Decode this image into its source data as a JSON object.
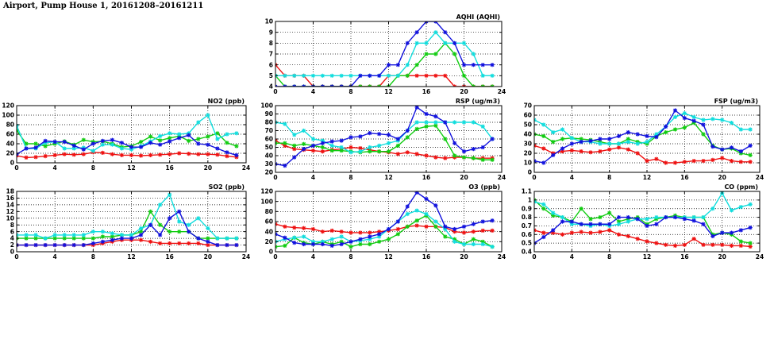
{
  "page": {
    "title": "Airport, Pump House 1, 20161208–20161211"
  },
  "colors": {
    "series1": "#ee1111",
    "series2": "#11cc11",
    "series3": "#1111dd",
    "series4": "#11dddd"
  },
  "chart_data": [
    {
      "id": "aqhi",
      "type": "line",
      "title": "AQHI (AQHI)",
      "xlim": [
        0,
        24
      ],
      "ylim": [
        4,
        10
      ],
      "xticks": [
        0,
        4,
        8,
        12,
        16,
        20,
        24
      ],
      "yticks": [
        4,
        5,
        6,
        7,
        8,
        9,
        10
      ],
      "grid": true,
      "series": [
        {
          "color": "#ee1111",
          "values": [
            6,
            5,
            5,
            5,
            4,
            4,
            4,
            4,
            4,
            4,
            4,
            4,
            5,
            5,
            5,
            5,
            5,
            5,
            5,
            4,
            4,
            4,
            4,
            4
          ]
        },
        {
          "color": "#11cc11",
          "values": [
            5,
            4,
            4,
            4,
            4,
            4,
            4,
            4,
            4,
            4,
            4,
            4,
            4,
            5,
            5,
            6,
            7,
            7,
            8,
            7,
            5,
            4,
            4,
            4
          ]
        },
        {
          "color": "#11dddd",
          "values": [
            5,
            5,
            5,
            5,
            5,
            5,
            5,
            5,
            5,
            5,
            5,
            5,
            5,
            5,
            6,
            8,
            8,
            9,
            8,
            8,
            8,
            7,
            5,
            5
          ]
        },
        {
          "color": "#1111dd",
          "values": [
            4,
            4,
            4,
            4,
            4,
            4,
            4,
            4,
            4,
            5,
            5,
            5,
            6,
            6,
            8,
            9,
            10,
            10,
            9,
            8,
            6,
            6,
            6,
            6
          ]
        }
      ]
    },
    {
      "id": "no2",
      "type": "line",
      "title": "NO2 (ppb)",
      "xlim": [
        0,
        24
      ],
      "ylim": [
        0,
        120
      ],
      "xticks": [
        0,
        4,
        8,
        12,
        16,
        20,
        24
      ],
      "yticks": [
        0,
        20,
        40,
        60,
        80,
        100,
        120
      ],
      "grid": true,
      "series": [
        {
          "color": "#ee1111",
          "values": [
            15,
            11,
            12,
            14,
            16,
            18,
            17,
            18,
            22,
            21,
            18,
            16,
            16,
            15,
            16,
            17,
            18,
            20,
            19,
            18,
            18,
            17,
            14,
            12
          ]
        },
        {
          "color": "#11cc11",
          "values": [
            68,
            40,
            40,
            35,
            40,
            45,
            38,
            48,
            44,
            45,
            40,
            33,
            35,
            44,
            55,
            47,
            52,
            56,
            46,
            50,
            55,
            62,
            42,
            35
          ]
        },
        {
          "color": "#11dddd",
          "values": [
            78,
            30,
            30,
            42,
            44,
            30,
            30,
            32,
            25,
            38,
            38,
            30,
            28,
            35,
            45,
            56,
            62,
            60,
            62,
            85,
            100,
            50,
            60,
            62
          ]
        },
        {
          "color": "#1111dd",
          "values": [
            18,
            30,
            32,
            46,
            44,
            44,
            36,
            28,
            40,
            46,
            48,
            42,
            33,
            33,
            42,
            38,
            45,
            52,
            58,
            40,
            38,
            30,
            22,
            16
          ]
        }
      ]
    },
    {
      "id": "rsp",
      "type": "line",
      "title": "RSP (ug/m3)",
      "xlim": [
        0,
        24
      ],
      "ylim": [
        20,
        100
      ],
      "xticks": [
        0,
        4,
        8,
        12,
        16,
        20,
        24
      ],
      "yticks": [
        20,
        30,
        40,
        50,
        60,
        70,
        80,
        90,
        100
      ],
      "grid": true,
      "series": [
        {
          "color": "#ee1111",
          "values": [
            58,
            52,
            48,
            47,
            46,
            45,
            47,
            48,
            50,
            49,
            47,
            45,
            44,
            42,
            44,
            42,
            40,
            38,
            37,
            38,
            38,
            37,
            37,
            37
          ]
        },
        {
          "color": "#11cc11",
          "values": [
            55,
            55,
            52,
            54,
            52,
            50,
            46,
            46,
            45,
            44,
            45,
            45,
            45,
            52,
            62,
            72,
            75,
            76,
            60,
            40,
            38,
            37,
            35,
            35
          ]
        },
        {
          "color": "#11dddd",
          "values": [
            80,
            78,
            65,
            70,
            60,
            58,
            52,
            50,
            44,
            45,
            50,
            52,
            55,
            58,
            70,
            80,
            80,
            80,
            80,
            80,
            80,
            80,
            75,
            60
          ]
        },
        {
          "color": "#1111dd",
          "values": [
            30,
            28,
            38,
            48,
            52,
            55,
            57,
            58,
            62,
            63,
            67,
            66,
            65,
            60,
            70,
            98,
            90,
            87,
            80,
            55,
            45,
            48,
            50,
            60
          ]
        }
      ]
    },
    {
      "id": "fsp",
      "type": "line",
      "title": "FSP (ug/m3)",
      "xlim": [
        0,
        24
      ],
      "ylim": [
        0,
        70
      ],
      "xticks": [
        0,
        4,
        8,
        12,
        16,
        20,
        24
      ],
      "yticks": [
        0,
        10,
        20,
        30,
        40,
        50,
        60,
        70
      ],
      "grid": true,
      "series": [
        {
          "color": "#ee1111",
          "values": [
            28,
            25,
            20,
            22,
            23,
            22,
            21,
            22,
            24,
            26,
            24,
            20,
            12,
            14,
            10,
            10,
            11,
            12,
            12,
            13,
            15,
            12,
            11,
            11
          ]
        },
        {
          "color": "#11cc11",
          "values": [
            40,
            38,
            32,
            35,
            36,
            35,
            34,
            32,
            30,
            30,
            35,
            32,
            30,
            38,
            42,
            45,
            47,
            52,
            40,
            28,
            24,
            25,
            20,
            18
          ]
        },
        {
          "color": "#11dddd",
          "values": [
            55,
            50,
            42,
            45,
            36,
            32,
            32,
            30,
            30,
            30,
            32,
            30,
            32,
            40,
            48,
            58,
            62,
            58,
            55,
            56,
            55,
            52,
            45,
            45
          ]
        },
        {
          "color": "#1111dd",
          "values": [
            12,
            10,
            18,
            25,
            30,
            32,
            33,
            35,
            35,
            38,
            42,
            40,
            38,
            37,
            48,
            65,
            57,
            54,
            50,
            27,
            24,
            26,
            22,
            28
          ]
        }
      ]
    },
    {
      "id": "so2",
      "type": "line",
      "title": "SO2 (ppb)",
      "xlim": [
        0,
        24
      ],
      "ylim": [
        0,
        18
      ],
      "xticks": [
        0,
        4,
        8,
        12,
        16,
        20,
        24
      ],
      "yticks": [
        0,
        2,
        4,
        6,
        8,
        10,
        12,
        14,
        16,
        18
      ],
      "grid": true,
      "series": [
        {
          "color": "#ee1111",
          "values": [
            2,
            2,
            2,
            2,
            2,
            2,
            2,
            2,
            2,
            2.5,
            3,
            3.5,
            3.5,
            3.5,
            3,
            2.5,
            2.5,
            2.5,
            2.5,
            2.5,
            2,
            2,
            2,
            2
          ]
        },
        {
          "color": "#11cc11",
          "values": [
            4,
            4,
            4,
            4,
            4,
            4,
            4,
            4,
            4,
            4.5,
            4.5,
            5,
            5,
            6,
            12,
            8,
            6,
            6,
            6,
            4,
            4,
            4,
            4,
            4
          ]
        },
        {
          "color": "#11dddd",
          "values": [
            5,
            5,
            5,
            4,
            5,
            5,
            5,
            5,
            6,
            6,
            5.5,
            5,
            5,
            7,
            8,
            14,
            17,
            9,
            8,
            10,
            7,
            4,
            4,
            4
          ]
        },
        {
          "color": "#1111dd",
          "values": [
            2,
            2,
            2,
            2,
            2,
            2,
            2,
            2,
            2.5,
            3,
            3.5,
            4,
            4,
            5,
            8,
            5,
            10,
            12,
            6,
            4,
            3,
            2,
            2,
            2
          ]
        }
      ]
    },
    {
      "id": "o3",
      "type": "line",
      "title": "O3 (ppb)",
      "xlim": [
        0,
        24
      ],
      "ylim": [
        0,
        120
      ],
      "xticks": [
        0,
        4,
        8,
        12,
        16,
        20,
        24
      ],
      "yticks": [
        0,
        20,
        40,
        60,
        80,
        100,
        120
      ],
      "grid": true,
      "series": [
        {
          "color": "#ee1111",
          "values": [
            55,
            50,
            48,
            47,
            45,
            40,
            42,
            40,
            38,
            38,
            38,
            40,
            42,
            45,
            50,
            52,
            50,
            50,
            48,
            40,
            38,
            40,
            42,
            42
          ]
        },
        {
          "color": "#11cc11",
          "values": [
            10,
            12,
            28,
            18,
            15,
            20,
            15,
            20,
            10,
            15,
            15,
            20,
            25,
            35,
            50,
            62,
            72,
            50,
            30,
            25,
            15,
            25,
            20,
            10
          ]
        },
        {
          "color": "#11dddd",
          "values": [
            20,
            25,
            28,
            30,
            20,
            20,
            25,
            30,
            20,
            22,
            25,
            30,
            45,
            60,
            75,
            82,
            75,
            60,
            45,
            20,
            15,
            15,
            15,
            10
          ]
        },
        {
          "color": "#1111dd",
          "values": [
            35,
            28,
            18,
            15,
            15,
            15,
            12,
            15,
            20,
            25,
            30,
            35,
            45,
            60,
            90,
            118,
            105,
            92,
            50,
            45,
            50,
            55,
            60,
            62
          ]
        }
      ]
    },
    {
      "id": "co",
      "type": "line",
      "title": "CO (ppm)",
      "xlim": [
        0,
        24
      ],
      "ylim": [
        0.4,
        1.1
      ],
      "xticks": [
        0,
        4,
        8,
        12,
        16,
        20,
        24
      ],
      "yticks": [
        0.4,
        0.5,
        0.6,
        0.7,
        0.8,
        0.9,
        1.0,
        1.1
      ],
      "grid": true,
      "series": [
        {
          "color": "#ee1111",
          "values": [
            0.65,
            0.62,
            0.62,
            0.6,
            0.62,
            0.63,
            0.62,
            0.63,
            0.65,
            0.6,
            0.58,
            0.55,
            0.52,
            0.5,
            0.48,
            0.47,
            0.48,
            0.55,
            0.48,
            0.48,
            0.48,
            0.47,
            0.47,
            0.46
          ]
        },
        {
          "color": "#11cc11",
          "values": [
            1.0,
            0.9,
            0.82,
            0.8,
            0.75,
            0.9,
            0.78,
            0.8,
            0.85,
            0.75,
            0.78,
            0.8,
            0.72,
            0.78,
            0.8,
            0.82,
            0.8,
            0.8,
            0.8,
            0.6,
            0.62,
            0.6,
            0.52,
            0.5
          ]
        },
        {
          "color": "#11dddd",
          "values": [
            0.98,
            0.95,
            0.85,
            0.8,
            0.72,
            0.72,
            0.7,
            0.72,
            0.7,
            0.72,
            0.75,
            0.78,
            0.78,
            0.8,
            0.8,
            0.8,
            0.8,
            0.8,
            0.8,
            0.9,
            1.08,
            0.88,
            0.92,
            0.95
          ]
        },
        {
          "color": "#1111dd",
          "values": [
            0.5,
            0.57,
            0.65,
            0.75,
            0.75,
            0.72,
            0.72,
            0.72,
            0.72,
            0.8,
            0.8,
            0.78,
            0.7,
            0.72,
            0.8,
            0.8,
            0.78,
            0.76,
            0.72,
            0.58,
            0.62,
            0.62,
            0.65,
            0.68
          ]
        }
      ]
    }
  ]
}
